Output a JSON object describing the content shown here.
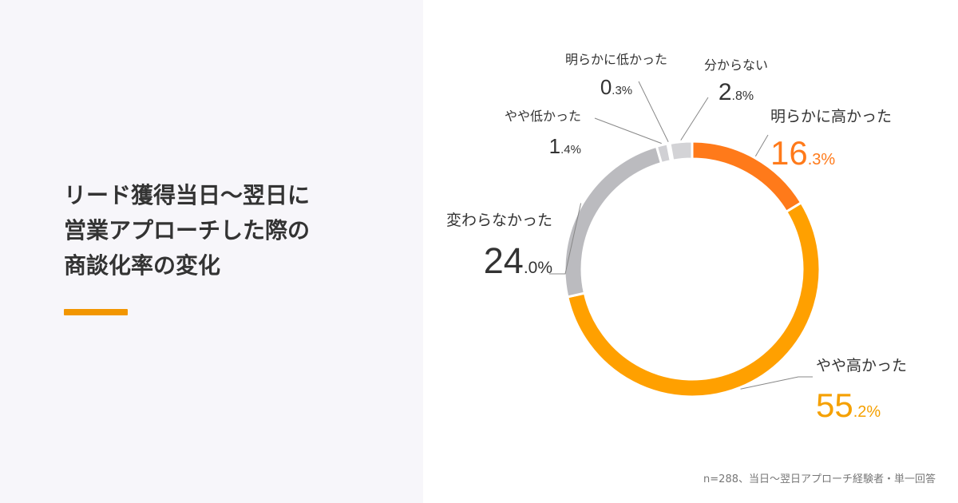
{
  "page": {
    "title_lines": [
      "リード獲得当日〜翌日に",
      "営業アプローチした際の",
      "商談化率の変化"
    ],
    "footnote": "n=288、当日〜翌日アプローチ経験者・単一回答",
    "colors": {
      "accent": "#F29600",
      "label_text": "#333333",
      "highlight_text": "#FF7A1A"
    }
  },
  "chart_data": {
    "type": "pie",
    "donut": true,
    "start": "top",
    "direction": "clockwise",
    "slices": [
      {
        "label": "明らかに高かった",
        "value": 16.3,
        "int_part": "16",
        "dec_part": ".3%",
        "color": "#FF7A1A",
        "text_color": "#FF7A1A"
      },
      {
        "label": "やや高かった",
        "value": 55.2,
        "int_part": "55",
        "dec_part": ".2%",
        "color": "#FFA000",
        "text_color": "#F5A000"
      },
      {
        "label": "変わらなかった",
        "value": 24.0,
        "int_part": "24",
        "dec_part": ".0%",
        "color": "#BBBBBF",
        "text_color": "#333333"
      },
      {
        "label": "やや低かった",
        "value": 1.4,
        "int_part": "1",
        "dec_part": ".4%",
        "color": "#D0D0D4",
        "text_color": "#333333"
      },
      {
        "label": "明らかに低かった",
        "value": 0.3,
        "int_part": "0",
        "dec_part": ".3%",
        "color": "#D6D6DA",
        "text_color": "#333333"
      },
      {
        "label": "分からない",
        "value": 2.8,
        "int_part": "2",
        "dec_part": ".8%",
        "color": "#D3D3D6",
        "text_color": "#333333"
      }
    ]
  }
}
